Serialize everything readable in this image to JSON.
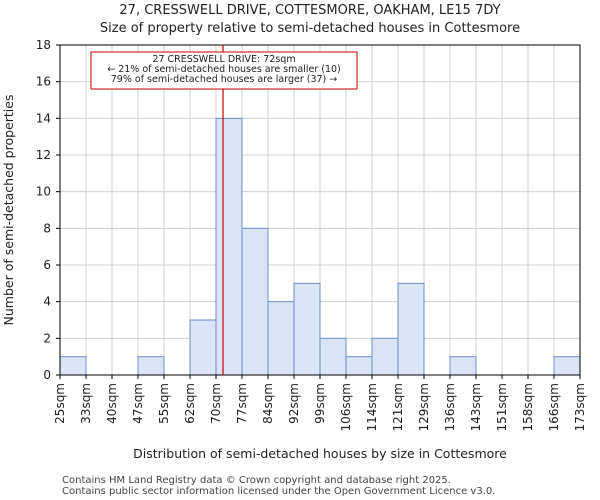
{
  "chart_data": {
    "type": "bar",
    "title_line1": "27, CRESSWELL DRIVE, COTTESMORE, OAKHAM, LE15 7DY",
    "title_line2": "Size of property relative to semi-detached houses in Cottesmore",
    "xlabel": "Distribution of semi-detached houses by size in Cottesmore",
    "ylabel": "Number of semi-detached properties",
    "x_tick_labels": [
      "25sqm",
      "33sqm",
      "40sqm",
      "47sqm",
      "55sqm",
      "62sqm",
      "70sqm",
      "77sqm",
      "84sqm",
      "92sqm",
      "99sqm",
      "106sqm",
      "114sqm",
      "121sqm",
      "129sqm",
      "136sqm",
      "143sqm",
      "151sqm",
      "158sqm",
      "166sqm",
      "173sqm"
    ],
    "values": [
      1,
      0,
      0,
      1,
      0,
      3,
      14,
      8,
      4,
      5,
      2,
      1,
      2,
      5,
      0,
      1,
      0,
      0,
      0,
      1
    ],
    "y_ticks": [
      0,
      2,
      4,
      6,
      8,
      10,
      12,
      14,
      16,
      18
    ],
    "ylim": [
      0,
      18
    ],
    "bar_color": "#dbe4f5",
    "bar_edge_color": "#6b8ccc",
    "marker": {
      "value_sqm": 72,
      "bin_position": 6.27,
      "color": "#cc0000",
      "annotation_lines": [
        "27 CRESSWELL DRIVE: 72sqm",
        "← 21% of semi-detached houses are smaller (10)",
        "79% of semi-detached houses are larger (37) →"
      ]
    }
  },
  "footer": {
    "line1": "Contains HM Land Registry data © Crown copyright and database right 2025.",
    "line2": "Contains public sector information licensed under the Open Government Licence v3.0."
  }
}
